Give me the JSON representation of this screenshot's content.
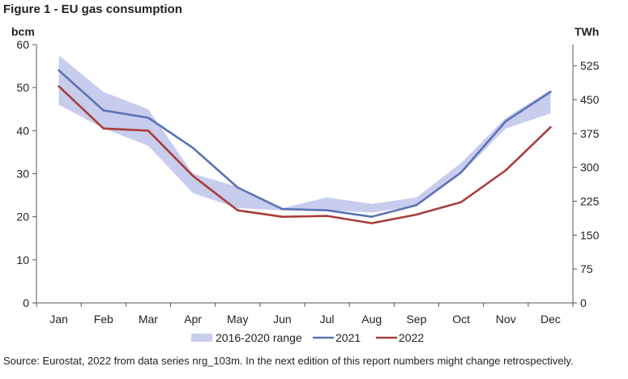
{
  "figure_title": "Figure 1 - EU gas consumption",
  "source": "Source: Eurostat, 2022 from data series nrg_103m. In the next edition of this report numbers might change retrospectively.",
  "chart_data": {
    "type": "line",
    "title": "Figure 1 - EU gas consumption",
    "ylabel": "bcm",
    "y2label": "TWh",
    "ylim": [
      0,
      60
    ],
    "y2lim": [
      0,
      572
    ],
    "yticks": [
      0,
      10,
      20,
      30,
      40,
      50,
      60
    ],
    "y2ticks": [
      0,
      75,
      150,
      225,
      300,
      375,
      450,
      525
    ],
    "categories": [
      "Jan",
      "Feb",
      "Mar",
      "Apr",
      "May",
      "Jun",
      "Jul",
      "Aug",
      "Sep",
      "Oct",
      "Nov",
      "Dec"
    ],
    "band": {
      "name": "2016-2020 range",
      "color": "#c8cdee",
      "low": [
        46.0,
        40.5,
        36.5,
        25.5,
        22.0,
        21.5,
        21.5,
        21.0,
        22.5,
        30.0,
        40.5,
        44.0
      ],
      "high": [
        57.5,
        49.0,
        45.0,
        30.0,
        27.0,
        22.0,
        24.5,
        23.0,
        24.5,
        32.5,
        43.0,
        49.5
      ]
    },
    "series": [
      {
        "name": "2021",
        "color": "#5b73b5",
        "values": [
          54.0,
          44.7,
          43.0,
          36.0,
          26.8,
          21.8,
          21.5,
          20.0,
          22.7,
          30.3,
          42.2,
          49.0
        ]
      },
      {
        "name": "2022",
        "color": "#a83e3b",
        "values": [
          50.3,
          40.5,
          40.0,
          29.5,
          21.5,
          20.0,
          20.2,
          18.5,
          20.5,
          23.4,
          30.8,
          40.8
        ]
      }
    ],
    "grid": false,
    "legend_position": "bottom"
  }
}
